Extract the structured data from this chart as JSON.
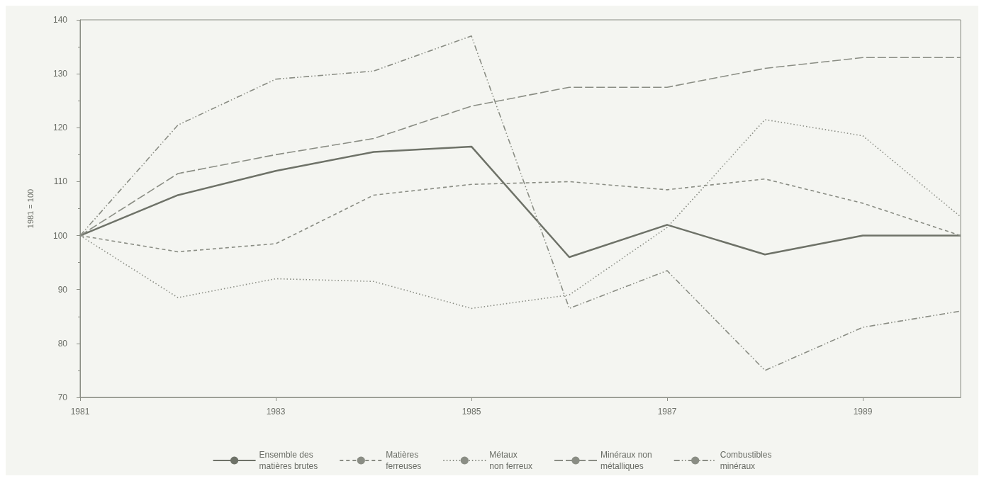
{
  "chart_data": {
    "type": "line",
    "ylabel": "1981 = 100",
    "x": [
      1981,
      1982,
      1983,
      1984,
      1985,
      1986,
      1987,
      1988,
      1989,
      1990
    ],
    "xlim": [
      1981,
      1990
    ],
    "xticks": [
      1981,
      1983,
      1985,
      1987,
      1989
    ],
    "ylim": [
      70,
      140
    ],
    "yticks": [
      70,
      80,
      90,
      100,
      110,
      120,
      130,
      140
    ],
    "grid": false,
    "legend": "bottom",
    "marker": "none",
    "series": [
      {
        "name": "Ensemble des\nmatières brutes",
        "color": "#6e7268",
        "line_style": "solid",
        "values": [
          100,
          107.5,
          112,
          115.5,
          116.5,
          96,
          102,
          96.5,
          100,
          100
        ]
      },
      {
        "name": "Matières\nferreuses",
        "color": "#8a8d84",
        "line_style": "dashed",
        "values": [
          100,
          97,
          98.5,
          107.5,
          109.5,
          110,
          108.5,
          110.5,
          106,
          100
        ]
      },
      {
        "name": "Métaux\nnon ferreux",
        "color": "#8a8d84",
        "line_style": "dotted",
        "values": [
          100,
          88.5,
          92,
          91.5,
          86.5,
          89,
          101.5,
          121.5,
          118.5,
          103.5
        ]
      },
      {
        "name": "Minéraux non\nmétalliques",
        "color": "#8a8d84",
        "line_style": "dashed",
        "values": [
          100,
          111.5,
          115,
          118,
          124,
          127.5,
          127.5,
          131,
          133,
          133
        ]
      },
      {
        "name": "Combustibles\nminéraux",
        "color": "#8a8d84",
        "line_style": "dashdot",
        "values": [
          100,
          120.5,
          129,
          130.5,
          137,
          86.5,
          93.5,
          75,
          83,
          86
        ]
      }
    ]
  }
}
